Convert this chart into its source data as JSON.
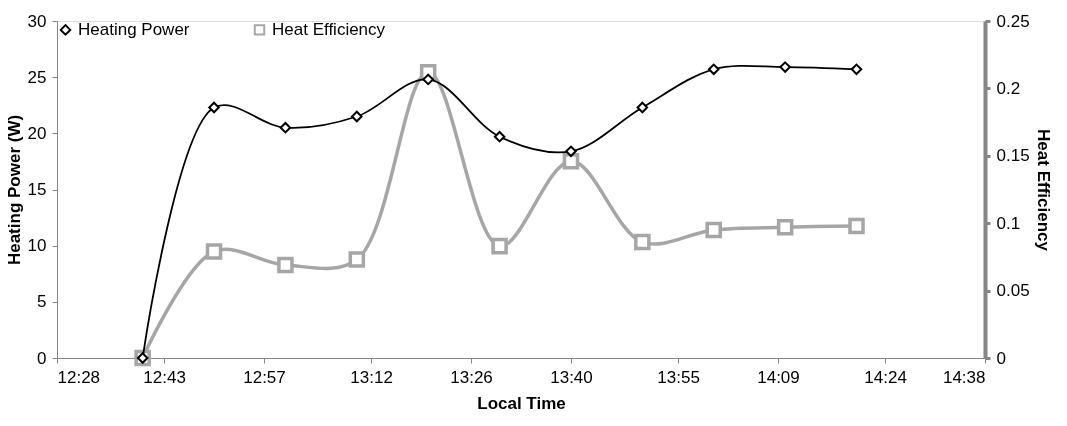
{
  "chart_data": {
    "type": "line",
    "xlabel": "Local Time",
    "ylabel": "Heating Power (W)",
    "y2label": "Heat Efficiency",
    "x": [
      12.6667,
      12.8333,
      13.0,
      13.1667,
      13.3333,
      13.5,
      13.6667,
      13.8333,
      14.0,
      14.1667,
      14.3333
    ],
    "series": [
      {
        "name": "Heating Power",
        "color": "#000000",
        "marker": "diamond",
        "values": [
          0,
          22.3,
          20.5,
          21.5,
          24.8,
          19.7,
          18.4,
          22.3,
          25.7,
          25.9,
          25.7
        ]
      },
      {
        "name": "Heat Efficiency",
        "color": "#a6a6a6",
        "marker": "square",
        "axis": "y2",
        "values": [
          0,
          0.079,
          0.069,
          0.073,
          0.212,
          0.083,
          0.146,
          0.086,
          0.095,
          0.097,
          0.098
        ]
      }
    ],
    "xlim": [
      12.4667,
      14.6333
    ],
    "xticks": [
      {
        "value": 12.4667,
        "label": "12:28"
      },
      {
        "value": 12.7167,
        "label": "12:43"
      },
      {
        "value": 12.95,
        "label": "12:57"
      },
      {
        "value": 13.2,
        "label": "13:12"
      },
      {
        "value": 13.4333,
        "label": "13:26"
      },
      {
        "value": 13.6667,
        "label": "13:40"
      },
      {
        "value": 13.9167,
        "label": "13:55"
      },
      {
        "value": 14.15,
        "label": "14:09"
      },
      {
        "value": 14.4,
        "label": "14:24"
      },
      {
        "value": 14.6333,
        "label": "14:38"
      }
    ],
    "ylim": [
      0,
      30
    ],
    "yticks": [
      0,
      5,
      10,
      15,
      20,
      25,
      30
    ],
    "y2lim": [
      0,
      0.25
    ],
    "y2ticks": [
      0,
      0.05,
      0.1,
      0.15,
      0.2,
      0.25
    ],
    "grid": false,
    "legend": "top",
    "line_style": "solid"
  }
}
